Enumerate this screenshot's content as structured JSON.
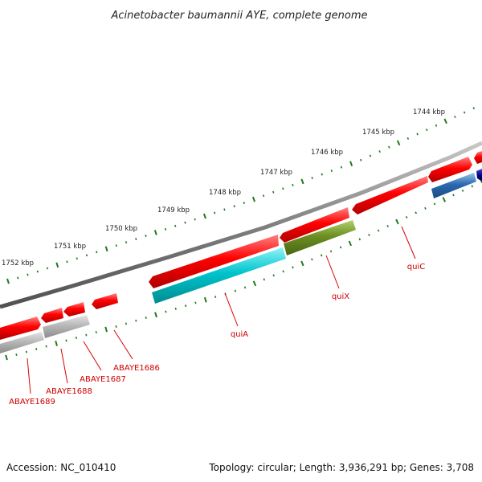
{
  "title": "Acinetobacter baumannii AYE, complete genome",
  "footer": {
    "accession": "Accession: NC_010410",
    "summary": "Topology: circular; Length: 3,936,291 bp; Genes: 3,708"
  },
  "colors": {
    "background": "#ffffff",
    "backbone": "#808080",
    "forward_gene": "#ff0000",
    "tick": "#1e7a1e",
    "label": "#cc0000"
  },
  "kbp_labels": [
    "1744 kbp",
    "1745 kbp",
    "1746 kbp",
    "1747 kbp",
    "1748 kbp",
    "1749 kbp",
    "1750 kbp",
    "1751 kbp",
    "1752 kbp"
  ],
  "gene_labels": [
    {
      "name": "quiC",
      "color": "#cc0000"
    },
    {
      "name": "quiX",
      "color": "#cc0000"
    },
    {
      "name": "quiA",
      "color": "#cc0000"
    },
    {
      "name": "ABAYE1686",
      "color": "#cc0000"
    },
    {
      "name": "ABAYE1687",
      "color": "#cc0000"
    },
    {
      "name": "ABAYE1688",
      "color": "#cc0000"
    },
    {
      "name": "ABAYE1689",
      "color": "#cc0000"
    }
  ],
  "lower_track_colors": [
    "#2a6ab0",
    "#6b8f22",
    "#00c4cc",
    "#b0b0b0",
    "#b0b0b0"
  ],
  "upper_track_colors": [
    "#ff0000",
    "#00008b"
  ]
}
